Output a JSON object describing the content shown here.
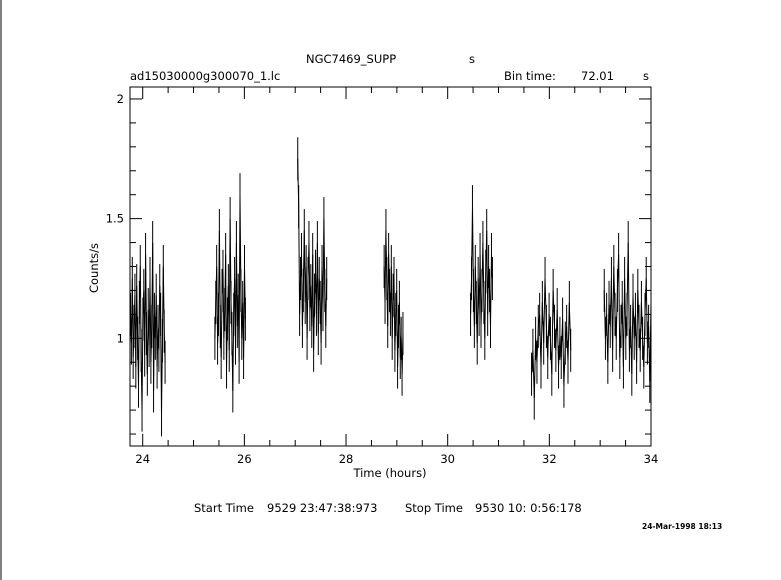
{
  "header": {
    "object": "NGC7469_SUPP",
    "object_unit": "s",
    "filename": "ad15030000g300070_1.lc",
    "bin_label": "Bin time:",
    "bin_value": "72.01",
    "bin_unit": "s"
  },
  "footer": {
    "start_label": "Start Time",
    "start_value": "9529 23:47:38:973",
    "stop_label": "Stop Time",
    "stop_value": "9530 10: 0:56:178",
    "date_stamp": "24-Mar-1998 18:13"
  },
  "chart_data": {
    "type": "line",
    "title": "NGC7469_SUPP",
    "xlabel": "Time (hours)",
    "ylabel": "Counts/s",
    "xlim": [
      23.75,
      34.0
    ],
    "ylim": [
      0.55,
      2.05
    ],
    "x_ticks": [
      24,
      26,
      28,
      30,
      32,
      34
    ],
    "y_ticks": [
      1,
      1.5,
      2
    ],
    "y_tick_labels": [
      "1",
      "1.5",
      "2"
    ],
    "grid": false,
    "segments": [
      {
        "x_start": 23.76,
        "x_end": 24.44,
        "values": [
          1.1,
          0.98,
          1.25,
          0.92,
          1.05,
          1.18,
          0.88,
          1.22,
          1.0,
          0.8,
          1.15,
          1.3,
          0.95,
          0.7,
          1.08,
          1.2,
          0.93,
          1.35,
          1.02,
          0.85,
          1.12,
          0.97,
          1.25,
          0.9,
          1.05,
          1.4,
          0.78,
          1.1,
          1.0,
          1.18,
          0.88,
          1.05,
          0.95,
          1.22,
          1.1,
          0.68,
          0.99,
          1.3,
          1.03,
          0.9
        ]
      },
      {
        "x_start": 25.42,
        "x_end": 26.02,
        "values": [
          1.0,
          1.15,
          1.3,
          0.98,
          1.1,
          1.45,
          1.05,
          0.92,
          1.2,
          1.28,
          1.0,
          1.12,
          1.35,
          0.88,
          1.08,
          1.22,
          0.95,
          1.5,
          1.15,
          1.02,
          0.78,
          1.1,
          1.25,
          0.98,
          1.4,
          1.05,
          1.18,
          0.9,
          1.6,
          1.2,
          1.0,
          1.15,
          0.92,
          1.3,
          1.08
        ]
      },
      {
        "x_start": 27.05,
        "x_end": 27.62,
        "values": [
          1.75,
          1.55,
          1.1,
          1.25,
          1.35,
          1.05,
          1.2,
          1.45,
          1.15,
          1.3,
          1.0,
          1.25,
          1.4,
          1.12,
          1.22,
          1.05,
          1.35,
          0.95,
          1.18,
          1.28,
          1.1,
          1.4,
          1.02,
          1.25,
          1.15,
          0.98,
          1.3,
          1.12,
          1.5,
          1.2,
          1.05,
          1.25
        ]
      },
      {
        "x_start": 28.75,
        "x_end": 29.12,
        "values": [
          1.3,
          1.15,
          1.45,
          1.25,
          1.05,
          1.35,
          1.2,
          1.1,
          1.3,
          1.0,
          1.18,
          1.25,
          0.95,
          1.1,
          1.2,
          0.88,
          1.05,
          1.15,
          0.92,
          1.0,
          0.85,
          1.02
        ]
      },
      {
        "x_start": 30.45,
        "x_end": 30.88,
        "values": [
          1.1,
          1.25,
          1.55,
          1.2,
          1.05,
          1.3,
          1.15,
          0.98,
          1.25,
          1.1,
          1.35,
          1.05,
          1.2,
          1.4,
          1.15,
          1.0,
          1.28,
          1.45,
          1.1,
          1.3,
          1.2,
          1.05,
          1.35,
          1.25
        ]
      },
      {
        "x_start": 31.65,
        "x_end": 32.42,
        "values": [
          0.85,
          0.95,
          0.75,
          1.0,
          0.9,
          1.05,
          1.1,
          0.88,
          1.15,
          0.98,
          1.25,
          1.05,
          0.92,
          1.1,
          1.0,
          0.85,
          1.2,
          1.05,
          0.95,
          1.12,
          0.88,
          1.0,
          0.92,
          1.08,
          0.8,
          0.98,
          1.05,
          0.9,
          1.15,
          0.95
        ]
      },
      {
        "x_start": 33.08,
        "x_end": 34.0,
        "values": [
          1.2,
          1.0,
          1.1,
          0.9,
          1.15,
          1.05,
          1.25,
          0.95,
          1.3,
          1.1,
          1.0,
          1.2,
          1.35,
          0.92,
          1.05,
          1.15,
          0.88,
          1.25,
          1.0,
          1.1,
          1.4,
          0.95,
          1.05,
          0.85,
          1.18,
          1.0,
          1.1,
          0.9,
          1.2,
          1.05,
          0.95,
          1.15,
          1.0,
          0.88,
          1.1,
          1.25,
          0.98,
          1.05,
          0.82,
          1.15
        ]
      }
    ]
  }
}
